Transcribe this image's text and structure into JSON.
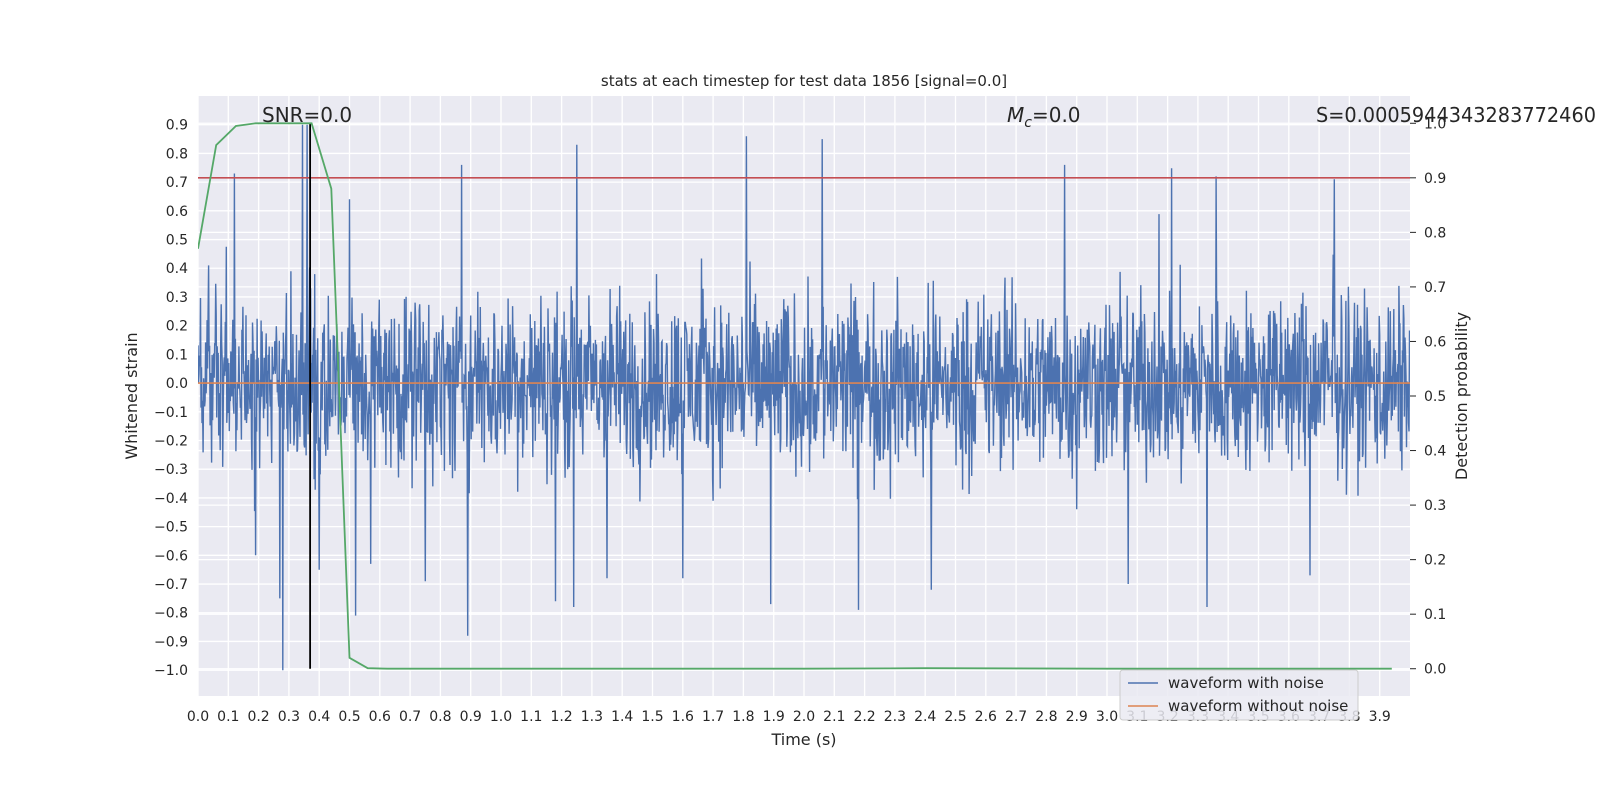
{
  "chart_data": {
    "type": "line",
    "title": "stats at each timestep for test data 1856 [signal=0.0]",
    "xlabel": "Time (s)",
    "ylabel": "Whitened strain",
    "y2label": "Detection probability",
    "xlim": [
      0.0,
      4.0
    ],
    "ylim": [
      -1.09,
      1.0
    ],
    "y2lim": [
      -0.05,
      1.05
    ],
    "x_ticks": [
      "0.0",
      "0.1",
      "0.2",
      "0.3",
      "0.4",
      "0.5",
      "0.6",
      "0.7",
      "0.8",
      "0.9",
      "1.0",
      "1.1",
      "1.2",
      "1.3",
      "1.4",
      "1.5",
      "1.6",
      "1.7",
      "1.8",
      "1.9",
      "2.0",
      "2.1",
      "2.2",
      "2.3",
      "2.4",
      "2.5",
      "2.6",
      "2.7",
      "2.8",
      "2.9",
      "3.0",
      "3.1",
      "3.2",
      "3.3",
      "3.4",
      "3.5",
      "3.6",
      "3.7",
      "3.8",
      "3.9"
    ],
    "y_ticks": [
      "0.9",
      "0.8",
      "0.7",
      "0.6",
      "0.5",
      "0.4",
      "0.3",
      "0.2",
      "0.1",
      "0.0",
      "−0.1",
      "−0.2",
      "−0.3",
      "−0.4",
      "−0.5",
      "−0.6",
      "−0.7",
      "−0.8",
      "−0.9",
      "−1.0"
    ],
    "y2_ticks": [
      "1.0",
      "0.9",
      "0.8",
      "0.7",
      "0.6",
      "0.5",
      "0.4",
      "0.3",
      "0.2",
      "0.1",
      "0.0"
    ],
    "annotations": {
      "snr_label": "SNR=0.0",
      "mc_symbol": "M",
      "mc_subscript": "c",
      "mc_value": "=0.0",
      "s_label": "S=0.0005944343283772460"
    },
    "threshold": 0.9,
    "marker_time": 0.37,
    "noise_amplitude": 0.26,
    "series": [
      {
        "name": "waveform with noise",
        "color": "#4c72b0",
        "peaks": [
          {
            "t": 0.035,
            "v": 0.41
          },
          {
            "t": 0.12,
            "v": 0.73
          },
          {
            "t": 0.19,
            "v": -0.6
          },
          {
            "t": 0.27,
            "v": -0.75
          },
          {
            "t": 0.28,
            "v": -1.0
          },
          {
            "t": 0.345,
            "v": 0.9
          },
          {
            "t": 0.36,
            "v": 0.9
          },
          {
            "t": 0.4,
            "v": -0.65
          },
          {
            "t": 0.5,
            "v": 0.64
          },
          {
            "t": 0.52,
            "v": -0.81
          },
          {
            "t": 0.57,
            "v": -0.63
          },
          {
            "t": 0.75,
            "v": -0.69
          },
          {
            "t": 0.87,
            "v": 0.76
          },
          {
            "t": 0.89,
            "v": -0.88
          },
          {
            "t": 1.18,
            "v": -0.76
          },
          {
            "t": 1.24,
            "v": -0.78
          },
          {
            "t": 1.25,
            "v": 0.83
          },
          {
            "t": 1.35,
            "v": -0.68
          },
          {
            "t": 1.6,
            "v": -0.68
          },
          {
            "t": 1.81,
            "v": 0.86
          },
          {
            "t": 1.89,
            "v": -0.77
          },
          {
            "t": 2.06,
            "v": 0.85
          },
          {
            "t": 2.18,
            "v": -0.79
          },
          {
            "t": 2.42,
            "v": -0.72
          },
          {
            "t": 2.86,
            "v": 0.76
          },
          {
            "t": 3.07,
            "v": -0.7
          },
          {
            "t": 3.33,
            "v": -0.78
          },
          {
            "t": 3.36,
            "v": 0.72
          },
          {
            "t": 3.67,
            "v": -0.67
          },
          {
            "t": 3.75,
            "v": 0.71
          }
        ]
      },
      {
        "name": "waveform without noise",
        "color": "#dd8452",
        "x": [
          0.0,
          4.0
        ],
        "values": [
          0.0,
          0.0
        ]
      },
      {
        "name": "detection probability",
        "color": "#55a868",
        "axis": "right",
        "x": [
          0.0,
          0.06,
          0.125,
          0.19,
          0.25,
          0.31,
          0.375,
          0.44,
          0.5,
          0.56,
          0.625,
          1.0,
          2.0,
          2.4,
          3.0,
          3.5,
          3.94
        ],
        "values": [
          0.77,
          0.96,
          0.995,
          1.0,
          1.0,
          1.0,
          1.0,
          0.88,
          0.02,
          0.001,
          0.0,
          0.0,
          0.0,
          0.001,
          0.0,
          0.0,
          0.0
        ]
      }
    ],
    "legend": {
      "position": "lower-right",
      "entries": [
        "waveform with noise",
        "waveform without noise"
      ]
    },
    "colors": {
      "background": "#eaeaf2",
      "grid": "#ffffff",
      "threshold": "#c44e52",
      "marker": "#000000"
    }
  }
}
